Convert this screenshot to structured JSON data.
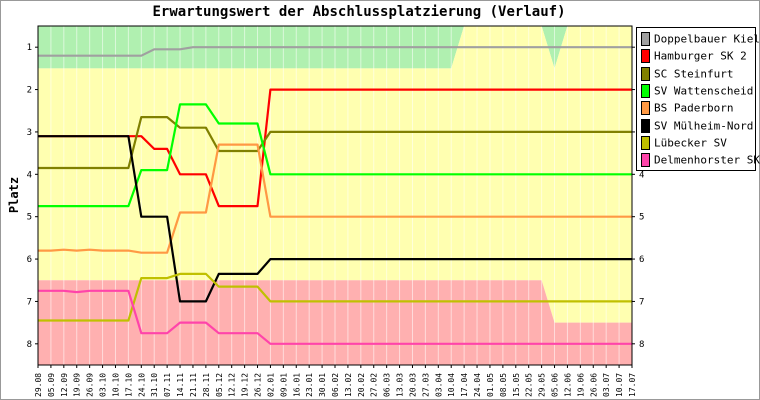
{
  "chart_data": {
    "type": "line",
    "title": "Erwartungswert der Abschlussplatzierung (Verlauf)",
    "ylabel": "Platz",
    "ylim": [
      0.5,
      8.5
    ],
    "y_inverted": true,
    "yticks": [
      1,
      2,
      3,
      4,
      5,
      6,
      7,
      8
    ],
    "grid": true,
    "legend_position": "right",
    "x": [
      "29.08",
      "05.09",
      "12.09",
      "19.09",
      "26.09",
      "03.10",
      "10.10",
      "17.10",
      "24.10",
      "31.10",
      "07.11",
      "14.11",
      "21.11",
      "28.11",
      "05.12",
      "12.12",
      "19.12",
      "26.12",
      "02.01",
      "09.01",
      "16.01",
      "23.01",
      "30.01",
      "06.02",
      "13.02",
      "20.02",
      "27.02",
      "06.03",
      "13.03",
      "20.03",
      "27.03",
      "03.04",
      "10.04",
      "17.04",
      "24.04",
      "01.05",
      "08.05",
      "15.05",
      "22.05",
      "29.05",
      "05.06",
      "12.06",
      "19.06",
      "26.06",
      "03.07",
      "10.07",
      "17.07"
    ],
    "zones": [
      {
        "name": "green",
        "color": "#b0f0b0",
        "top": [
          0.5,
          0.5,
          0.5,
          0.5,
          0.5,
          0.5,
          0.5,
          0.5,
          0.5,
          0.5,
          0.5,
          0.5,
          0.5,
          0.5,
          0.5,
          0.5,
          0.5,
          0.5,
          0.5,
          0.5,
          0.5,
          0.5,
          0.5,
          0.5,
          0.5,
          0.5,
          0.5,
          0.5,
          0.5,
          0.5,
          0.5,
          0.5,
          0.5,
          0.5,
          0.5,
          0.5,
          0.5,
          0.5,
          0.5,
          0.5,
          0.5,
          0.5,
          0.5,
          0.5,
          0.5,
          0.5,
          0.5
        ],
        "bottom": [
          1.5,
          1.5,
          1.5,
          1.5,
          1.5,
          1.5,
          1.5,
          1.5,
          1.5,
          1.5,
          1.5,
          1.5,
          1.5,
          1.5,
          1.5,
          1.5,
          1.5,
          1.5,
          1.5,
          1.5,
          1.5,
          1.5,
          1.5,
          1.5,
          1.5,
          1.5,
          1.5,
          1.5,
          1.5,
          1.5,
          1.5,
          1.5,
          1.5,
          0.5,
          0.5,
          0.5,
          0.5,
          0.5,
          0.5,
          0.5,
          1.5,
          0.5,
          0.5,
          0.5,
          0.5,
          0.5,
          0.5
        ]
      },
      {
        "name": "yellow",
        "color": "#ffffb0",
        "top": [
          1.5,
          1.5,
          1.5,
          1.5,
          1.5,
          1.5,
          1.5,
          1.5,
          1.5,
          1.5,
          1.5,
          1.5,
          1.5,
          1.5,
          1.5,
          1.5,
          1.5,
          1.5,
          1.5,
          1.5,
          1.5,
          1.5,
          1.5,
          1.5,
          1.5,
          1.5,
          1.5,
          1.5,
          1.5,
          1.5,
          1.5,
          1.5,
          1.5,
          0.5,
          0.5,
          0.5,
          0.5,
          0.5,
          0.5,
          0.5,
          1.5,
          0.5,
          0.5,
          0.5,
          0.5,
          0.5,
          0.5
        ],
        "bottom": [
          6.5,
          6.5,
          6.5,
          6.5,
          6.5,
          6.5,
          6.5,
          6.5,
          6.5,
          6.5,
          6.5,
          6.5,
          6.5,
          6.5,
          6.5,
          6.5,
          6.5,
          6.5,
          6.5,
          6.5,
          6.5,
          6.5,
          6.5,
          6.5,
          6.5,
          6.5,
          6.5,
          6.5,
          6.5,
          6.5,
          6.5,
          6.5,
          6.5,
          6.5,
          6.5,
          6.5,
          6.5,
          6.5,
          6.5,
          6.5,
          7.5,
          7.5,
          7.5,
          7.5,
          7.5,
          7.5,
          7.5
        ]
      },
      {
        "name": "red",
        "color": "#ffb0b0",
        "top": [
          6.5,
          6.5,
          6.5,
          6.5,
          6.5,
          6.5,
          6.5,
          6.5,
          6.5,
          6.5,
          6.5,
          6.5,
          6.5,
          6.5,
          6.5,
          6.5,
          6.5,
          6.5,
          6.5,
          6.5,
          6.5,
          6.5,
          6.5,
          6.5,
          6.5,
          6.5,
          6.5,
          6.5,
          6.5,
          6.5,
          6.5,
          6.5,
          6.5,
          6.5,
          6.5,
          6.5,
          6.5,
          6.5,
          6.5,
          6.5,
          7.5,
          7.5,
          7.5,
          7.5,
          7.5,
          7.5,
          7.5
        ],
        "bottom": [
          8.5,
          8.5,
          8.5,
          8.5,
          8.5,
          8.5,
          8.5,
          8.5,
          8.5,
          8.5,
          8.5,
          8.5,
          8.5,
          8.5,
          8.5,
          8.5,
          8.5,
          8.5,
          8.5,
          8.5,
          8.5,
          8.5,
          8.5,
          8.5,
          8.5,
          8.5,
          8.5,
          8.5,
          8.5,
          8.5,
          8.5,
          8.5,
          8.5,
          8.5,
          8.5,
          8.5,
          8.5,
          8.5,
          8.5,
          8.5,
          8.5,
          8.5,
          8.5,
          8.5,
          8.5,
          8.5,
          8.5
        ]
      }
    ],
    "series": [
      {
        "name": "Doppelbauer Kiel",
        "color": "#a0a0a0",
        "values": [
          1.2,
          1.2,
          1.2,
          1.2,
          1.2,
          1.2,
          1.2,
          1.2,
          1.2,
          1.05,
          1.05,
          1.05,
          1.0,
          1.0,
          1.0,
          1.0,
          1.0,
          1.0,
          1.0,
          1.0,
          1.0,
          1.0,
          1.0,
          1.0,
          1.0,
          1.0,
          1.0,
          1.0,
          1.0,
          1.0,
          1.0,
          1.0,
          1.0,
          1.0,
          1.0,
          1.0,
          1.0,
          1.0,
          1.0,
          1.0,
          1.0,
          1.0,
          1.0,
          1.0,
          1.0,
          1.0,
          1.0
        ]
      },
      {
        "name": "Hamburger SK 2",
        "color": "#ff0000",
        "values": [
          3.1,
          3.1,
          3.1,
          3.1,
          3.1,
          3.1,
          3.1,
          3.1,
          3.1,
          3.4,
          3.4,
          4.0,
          4.0,
          4.0,
          4.75,
          4.75,
          4.75,
          4.75,
          2.0,
          2.0,
          2.0,
          2.0,
          2.0,
          2.0,
          2.0,
          2.0,
          2.0,
          2.0,
          2.0,
          2.0,
          2.0,
          2.0,
          2.0,
          2.0,
          2.0,
          2.0,
          2.0,
          2.0,
          2.0,
          2.0,
          2.0,
          2.0,
          2.0,
          2.0,
          2.0,
          2.0,
          2.0
        ]
      },
      {
        "name": "SC Steinfurt",
        "color": "#808000",
        "values": [
          3.85,
          3.85,
          3.85,
          3.85,
          3.85,
          3.85,
          3.85,
          3.85,
          2.65,
          2.65,
          2.65,
          2.9,
          2.9,
          2.9,
          3.45,
          3.45,
          3.45,
          3.45,
          3.0,
          3.0,
          3.0,
          3.0,
          3.0,
          3.0,
          3.0,
          3.0,
          3.0,
          3.0,
          3.0,
          3.0,
          3.0,
          3.0,
          3.0,
          3.0,
          3.0,
          3.0,
          3.0,
          3.0,
          3.0,
          3.0,
          3.0,
          3.0,
          3.0,
          3.0,
          3.0,
          3.0,
          3.0
        ]
      },
      {
        "name": "SV Wattenscheid",
        "color": "#00ff00",
        "values": [
          4.75,
          4.75,
          4.75,
          4.75,
          4.75,
          4.75,
          4.75,
          4.75,
          3.9,
          3.9,
          3.9,
          2.35,
          2.35,
          2.35,
          2.8,
          2.8,
          2.8,
          2.8,
          4.0,
          4.0,
          4.0,
          4.0,
          4.0,
          4.0,
          4.0,
          4.0,
          4.0,
          4.0,
          4.0,
          4.0,
          4.0,
          4.0,
          4.0,
          4.0,
          4.0,
          4.0,
          4.0,
          4.0,
          4.0,
          4.0,
          4.0,
          4.0,
          4.0,
          4.0,
          4.0,
          4.0,
          4.0
        ]
      },
      {
        "name": "BS Paderborn",
        "color": "#ff9944",
        "values": [
          5.8,
          5.8,
          5.78,
          5.8,
          5.78,
          5.8,
          5.8,
          5.8,
          5.85,
          5.85,
          5.85,
          4.9,
          4.9,
          4.9,
          3.3,
          3.3,
          3.3,
          3.3,
          5.0,
          5.0,
          5.0,
          5.0,
          5.0,
          5.0,
          5.0,
          5.0,
          5.0,
          5.0,
          5.0,
          5.0,
          5.0,
          5.0,
          5.0,
          5.0,
          5.0,
          5.0,
          5.0,
          5.0,
          5.0,
          5.0,
          5.0,
          5.0,
          5.0,
          5.0,
          5.0,
          5.0,
          5.0
        ]
      },
      {
        "name": "SV Mülheim-Nord",
        "color": "#000000",
        "values": [
          3.1,
          3.1,
          3.1,
          3.1,
          3.1,
          3.1,
          3.1,
          3.1,
          5.0,
          5.0,
          5.0,
          7.0,
          7.0,
          7.0,
          6.35,
          6.35,
          6.35,
          6.35,
          6.0,
          6.0,
          6.0,
          6.0,
          6.0,
          6.0,
          6.0,
          6.0,
          6.0,
          6.0,
          6.0,
          6.0,
          6.0,
          6.0,
          6.0,
          6.0,
          6.0,
          6.0,
          6.0,
          6.0,
          6.0,
          6.0,
          6.0,
          6.0,
          6.0,
          6.0,
          6.0,
          6.0,
          6.0
        ]
      },
      {
        "name": "Lübecker SV",
        "color": "#c0c000",
        "values": [
          7.45,
          7.45,
          7.45,
          7.45,
          7.45,
          7.45,
          7.45,
          7.45,
          6.45,
          6.45,
          6.45,
          6.35,
          6.35,
          6.35,
          6.65,
          6.65,
          6.65,
          6.65,
          7.0,
          7.0,
          7.0,
          7.0,
          7.0,
          7.0,
          7.0,
          7.0,
          7.0,
          7.0,
          7.0,
          7.0,
          7.0,
          7.0,
          7.0,
          7.0,
          7.0,
          7.0,
          7.0,
          7.0,
          7.0,
          7.0,
          7.0,
          7.0,
          7.0,
          7.0,
          7.0,
          7.0,
          7.0
        ]
      },
      {
        "name": "Delmenhorster SK",
        "color": "#ff44aa",
        "values": [
          6.75,
          6.75,
          6.75,
          6.78,
          6.75,
          6.75,
          6.75,
          6.75,
          7.75,
          7.75,
          7.75,
          7.5,
          7.5,
          7.5,
          7.75,
          7.75,
          7.75,
          7.75,
          8.0,
          8.0,
          8.0,
          8.0,
          8.0,
          8.0,
          8.0,
          8.0,
          8.0,
          8.0,
          8.0,
          8.0,
          8.0,
          8.0,
          8.0,
          8.0,
          8.0,
          8.0,
          8.0,
          8.0,
          8.0,
          8.0,
          8.0,
          8.0,
          8.0,
          8.0,
          8.0,
          8.0,
          8.0
        ]
      }
    ]
  }
}
